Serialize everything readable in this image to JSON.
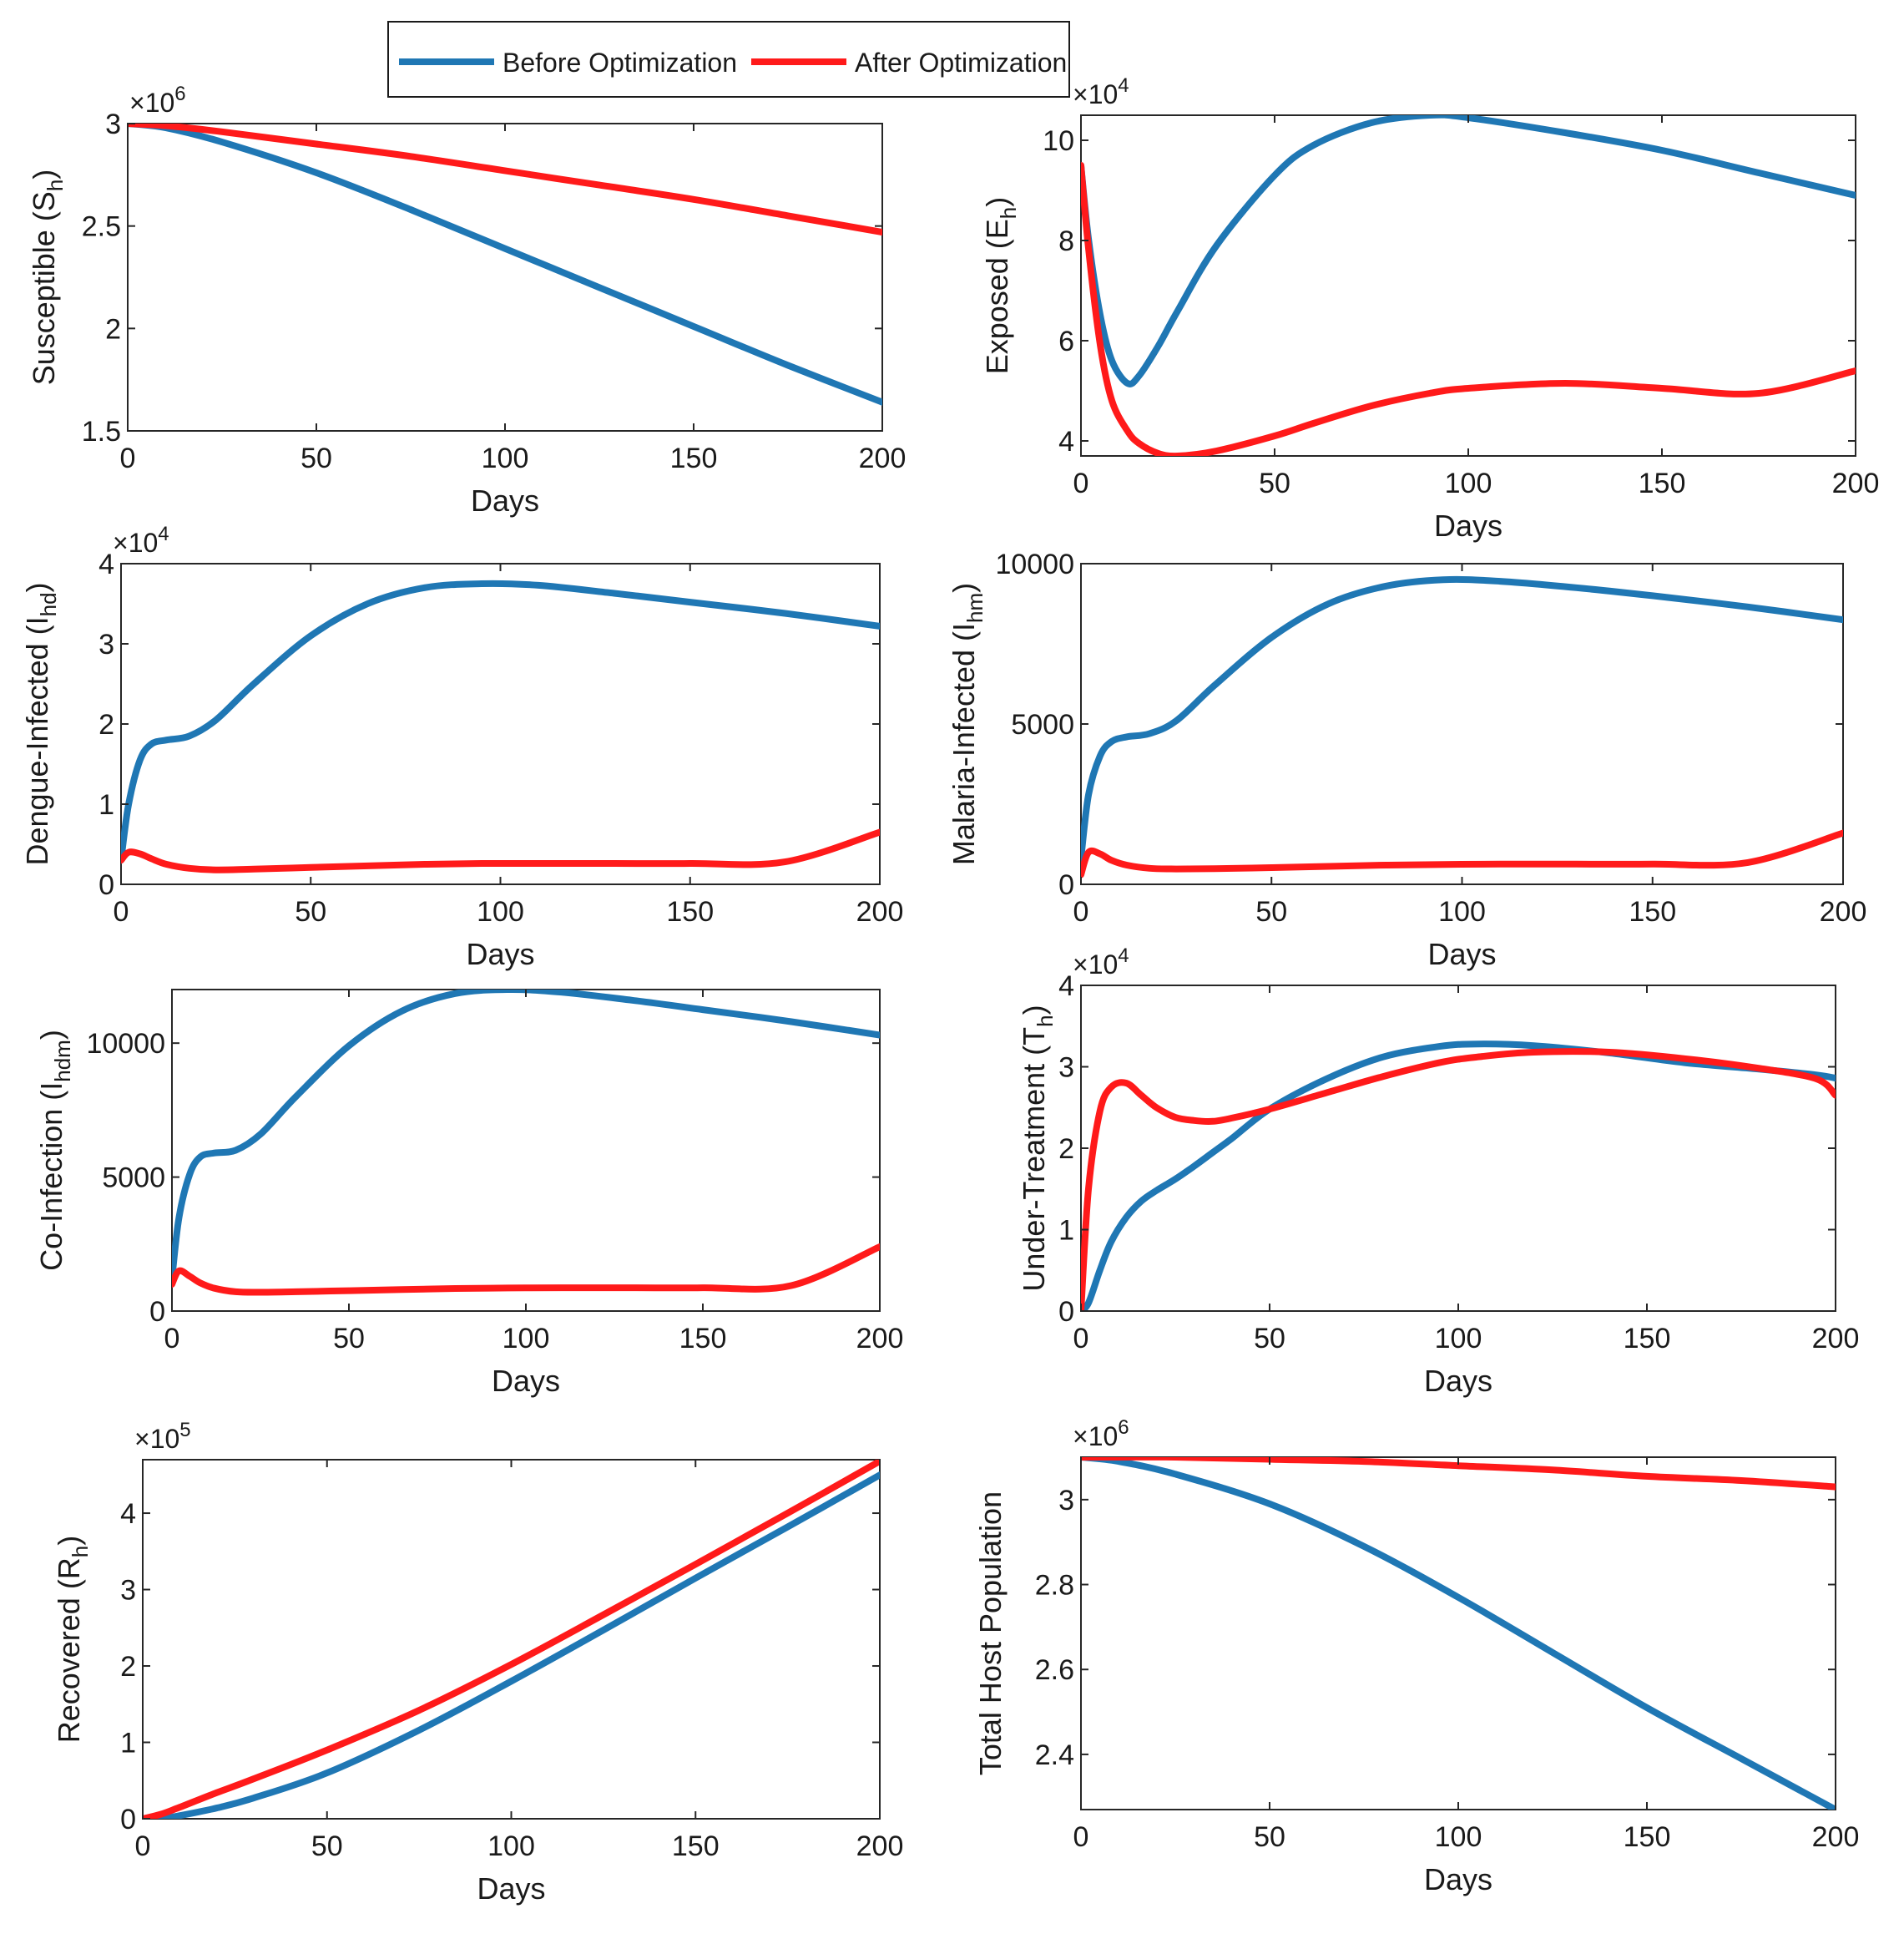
{
  "legend": {
    "entries": [
      {
        "label": "Before Optimization",
        "color": "#1f77b4"
      },
      {
        "label": "After Optimization",
        "color": "#ff1a1a"
      }
    ]
  },
  "colors": {
    "before": "#1f77b4",
    "after": "#ff1a1a",
    "axis": "#262626"
  },
  "chart_data": [
    {
      "type": "line",
      "id": "susceptible",
      "ylabel_main": "Susceptible (S",
      "ylabel_sub": "h",
      "ylabel_tail": ")",
      "xlabel": "Days",
      "exponent_base": "×10",
      "exponent_power": "6",
      "xlim": [
        0,
        200
      ],
      "ylim": [
        1.5,
        3
      ],
      "xticks": [
        0,
        50,
        100,
        150,
        200
      ],
      "yticks": [
        1.5,
        2,
        2.5,
        3
      ],
      "ytick_labels": [
        "1.5",
        "2",
        "2.5",
        "3"
      ],
      "x": [
        0,
        10,
        25,
        50,
        75,
        100,
        125,
        150,
        175,
        200
      ],
      "series": [
        {
          "name": "Before Optimization",
          "values": [
            3.0,
            2.98,
            2.91,
            2.76,
            2.58,
            2.39,
            2.2,
            2.01,
            1.82,
            1.64
          ]
        },
        {
          "name": "After Optimization",
          "values": [
            3.0,
            2.99,
            2.96,
            2.9,
            2.84,
            2.77,
            2.7,
            2.63,
            2.55,
            2.47
          ]
        }
      ]
    },
    {
      "type": "line",
      "id": "exposed",
      "ylabel_main": "Exposed (E",
      "ylabel_sub": "h",
      "ylabel_tail": ")",
      "xlabel": "Days",
      "exponent_base": "×10",
      "exponent_power": "4",
      "xlim": [
        0,
        200
      ],
      "ylim": [
        3.7,
        10.5
      ],
      "xticks": [
        0,
        50,
        100,
        150,
        200
      ],
      "yticks": [
        4,
        6,
        8,
        10
      ],
      "ytick_labels": [
        "4",
        "6",
        "8",
        "10"
      ],
      "x": [
        0,
        2,
        5,
        8,
        12,
        15,
        20,
        25,
        35,
        50,
        60,
        75,
        90,
        100,
        125,
        150,
        175,
        200
      ],
      "series": [
        {
          "name": "Before Optimization",
          "values": [
            9.5,
            8.0,
            6.5,
            5.6,
            5.15,
            5.3,
            5.9,
            6.6,
            7.9,
            9.3,
            9.9,
            10.35,
            10.5,
            10.45,
            10.15,
            9.8,
            9.35,
            8.9
          ]
        },
        {
          "name": "After Optimization",
          "values": [
            9.5,
            7.8,
            5.9,
            4.8,
            4.2,
            3.95,
            3.75,
            3.7,
            3.8,
            4.1,
            4.35,
            4.7,
            4.95,
            5.05,
            5.15,
            5.05,
            4.95,
            5.4
          ]
        }
      ]
    },
    {
      "type": "line",
      "id": "dengue",
      "ylabel_main": "Dengue-Infected (I",
      "ylabel_sub": "hd",
      "ylabel_tail": ")",
      "xlabel": "Days",
      "exponent_base": "×10",
      "exponent_power": "4",
      "xlim": [
        0,
        200
      ],
      "ylim": [
        0,
        4
      ],
      "xticks": [
        0,
        50,
        100,
        150,
        200
      ],
      "yticks": [
        0,
        1,
        2,
        3,
        4
      ],
      "ytick_labels": [
        "0",
        "1",
        "2",
        "3",
        "4"
      ],
      "x": [
        0,
        2,
        5,
        8,
        12,
        18,
        25,
        35,
        50,
        65,
        80,
        95,
        110,
        130,
        150,
        175,
        200
      ],
      "series": [
        {
          "name": "Before Optimization",
          "values": [
            0.3,
            1.0,
            1.55,
            1.75,
            1.8,
            1.85,
            2.05,
            2.5,
            3.1,
            3.5,
            3.7,
            3.75,
            3.73,
            3.63,
            3.52,
            3.38,
            3.22
          ]
        },
        {
          "name": "After Optimization",
          "values": [
            0.3,
            0.4,
            0.38,
            0.32,
            0.25,
            0.2,
            0.18,
            0.19,
            0.21,
            0.23,
            0.25,
            0.26,
            0.26,
            0.26,
            0.26,
            0.28,
            0.65
          ]
        }
      ]
    },
    {
      "type": "line",
      "id": "malaria",
      "ylabel_main": "Malaria-Infected (I",
      "ylabel_sub": "hm",
      "ylabel_tail": ")",
      "xlabel": "Days",
      "exponent_base": "",
      "exponent_power": "",
      "xlim": [
        0,
        200
      ],
      "ylim": [
        0,
        10000
      ],
      "xticks": [
        0,
        50,
        100,
        150,
        200
      ],
      "yticks": [
        0,
        5000,
        10000
      ],
      "ytick_labels": [
        "0",
        "5000",
        "10000"
      ],
      "x": [
        0,
        2,
        5,
        8,
        12,
        18,
        25,
        35,
        50,
        65,
        80,
        95,
        110,
        130,
        150,
        175,
        200
      ],
      "series": [
        {
          "name": "Before Optimization",
          "values": [
            800,
            2800,
            4000,
            4450,
            4600,
            4700,
            5100,
            6200,
            7700,
            8750,
            9300,
            9500,
            9450,
            9250,
            9000,
            8650,
            8250
          ]
        },
        {
          "name": "After Optimization",
          "values": [
            300,
            1000,
            950,
            750,
            600,
            500,
            480,
            490,
            520,
            560,
            600,
            620,
            630,
            630,
            630,
            680,
            1600
          ]
        }
      ]
    },
    {
      "type": "line",
      "id": "coinfection",
      "ylabel_main": "Co-Infection (I",
      "ylabel_sub": "hdm",
      "ylabel_tail": ")",
      "xlabel": "Days",
      "exponent_base": "",
      "exponent_power": "",
      "xlim": [
        0,
        200
      ],
      "ylim": [
        0,
        12000
      ],
      "xticks": [
        0,
        50,
        100,
        150,
        200
      ],
      "yticks": [
        0,
        5000,
        10000
      ],
      "ytick_labels": [
        "0",
        "5000",
        "10000"
      ],
      "x": [
        0,
        2,
        5,
        8,
        12,
        18,
        25,
        35,
        50,
        65,
        80,
        95,
        110,
        130,
        150,
        175,
        200
      ],
      "series": [
        {
          "name": "Before Optimization",
          "values": [
            1200,
            3500,
            5100,
            5750,
            5900,
            6000,
            6600,
            8000,
            9900,
            11200,
            11850,
            12000,
            11900,
            11600,
            11250,
            10800,
            10300
          ]
        },
        {
          "name": "After Optimization",
          "values": [
            1000,
            1500,
            1300,
            1050,
            850,
            720,
            700,
            720,
            760,
            800,
            840,
            860,
            870,
            870,
            870,
            950,
            2400
          ]
        }
      ]
    },
    {
      "type": "line",
      "id": "treatment",
      "ylabel_main": "Under-Treatment (T",
      "ylabel_sub": "h",
      "ylabel_tail": ")",
      "xlabel": "Days",
      "exponent_base": "×10",
      "exponent_power": "4",
      "xlim": [
        0,
        200
      ],
      "ylim": [
        0,
        4
      ],
      "xticks": [
        0,
        50,
        100,
        150,
        200
      ],
      "yticks": [
        0,
        1,
        2,
        3,
        4
      ],
      "ytick_labels": [
        "0",
        "1",
        "2",
        "3",
        "4"
      ],
      "x": [
        0,
        2,
        5,
        8,
        12,
        16,
        20,
        25,
        30,
        35,
        40,
        50,
        65,
        80,
        95,
        105,
        120,
        140,
        160,
        180,
        195,
        200
      ],
      "series": [
        {
          "name": "Before Optimization",
          "values": [
            0,
            0.1,
            0.5,
            0.85,
            1.15,
            1.35,
            1.48,
            1.62,
            1.78,
            1.95,
            2.12,
            2.48,
            2.85,
            3.12,
            3.25,
            3.28,
            3.26,
            3.17,
            3.05,
            2.97,
            2.9,
            2.86
          ]
        },
        {
          "name": "After Optimization",
          "values": [
            0,
            1.5,
            2.45,
            2.75,
            2.8,
            2.65,
            2.5,
            2.38,
            2.34,
            2.33,
            2.37,
            2.48,
            2.68,
            2.88,
            3.05,
            3.12,
            3.18,
            3.18,
            3.1,
            2.98,
            2.85,
            2.65
          ]
        }
      ]
    },
    {
      "type": "line",
      "id": "recovered",
      "ylabel_main": "Recovered (R",
      "ylabel_sub": "h",
      "ylabel_tail": ")",
      "xlabel": "Days",
      "exponent_base": "×10",
      "exponent_power": "5",
      "xlim": [
        0,
        200
      ],
      "ylim": [
        0,
        4.7
      ],
      "xticks": [
        0,
        50,
        100,
        150,
        200
      ],
      "yticks": [
        0,
        1,
        2,
        3,
        4
      ],
      "ytick_labels": [
        "0",
        "1",
        "2",
        "3",
        "4"
      ],
      "x": [
        0,
        5,
        10,
        20,
        30,
        50,
        75,
        100,
        125,
        150,
        175,
        200
      ],
      "series": [
        {
          "name": "Before Optimization",
          "values": [
            0,
            0.0,
            0.04,
            0.14,
            0.27,
            0.6,
            1.16,
            1.8,
            2.47,
            3.15,
            3.82,
            4.5
          ]
        },
        {
          "name": "After Optimization",
          "values": [
            0,
            0.06,
            0.15,
            0.34,
            0.52,
            0.9,
            1.42,
            2.02,
            2.67,
            3.33,
            4.0,
            4.68
          ]
        }
      ]
    },
    {
      "type": "line",
      "id": "total",
      "ylabel_main": "Total Host Population",
      "ylabel_sub": "",
      "ylabel_tail": "",
      "xlabel": "Days",
      "exponent_base": "×10",
      "exponent_power": "6",
      "xlim": [
        0,
        200
      ],
      "ylim": [
        2.27,
        3.1
      ],
      "xticks": [
        0,
        50,
        100,
        150,
        200
      ],
      "yticks": [
        2.4,
        2.6,
        2.8,
        3
      ],
      "ytick_labels": [
        "2.4",
        "2.6",
        "2.8",
        "3"
      ],
      "x": [
        0,
        10,
        25,
        50,
        75,
        100,
        125,
        150,
        175,
        200
      ],
      "series": [
        {
          "name": "Before Optimization",
          "values": [
            3.1,
            3.09,
            3.06,
            2.99,
            2.89,
            2.77,
            2.64,
            2.51,
            2.39,
            2.27
          ]
        },
        {
          "name": "After Optimization",
          "values": [
            3.1,
            3.1,
            3.1,
            3.095,
            3.09,
            3.08,
            3.07,
            3.055,
            3.045,
            3.03
          ]
        }
      ]
    }
  ]
}
